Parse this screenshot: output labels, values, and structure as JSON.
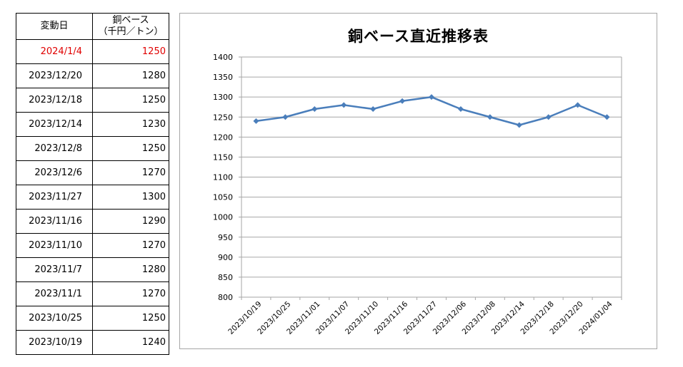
{
  "table": {
    "headers": [
      "変動日",
      "銅ベース\n（千円／トン）"
    ],
    "rows": [
      {
        "date": "2024/1/4",
        "value": "1250",
        "highlight": true
      },
      {
        "date": "2023/12/20",
        "value": "1280"
      },
      {
        "date": "2023/12/18",
        "value": "1250"
      },
      {
        "date": "2023/12/14",
        "value": "1230"
      },
      {
        "date": "2023/12/8",
        "value": "1250"
      },
      {
        "date": "2023/12/6",
        "value": "1270"
      },
      {
        "date": "2023/11/27",
        "value": "1300"
      },
      {
        "date": "2023/11/16",
        "value": "1290"
      },
      {
        "date": "2023/11/10",
        "value": "1270"
      },
      {
        "date": "2023/11/7",
        "value": "1280"
      },
      {
        "date": "2023/11/1",
        "value": "1270"
      },
      {
        "date": "2023/10/25",
        "value": "1250"
      },
      {
        "date": "2023/10/19",
        "value": "1240"
      }
    ]
  },
  "colors": {
    "highlight_text": "#e00000",
    "series_line": "#4a7ebb",
    "grid": "#a6a6a6"
  },
  "chart_data": {
    "type": "line",
    "title": "銅ベース直近推移表",
    "xlabel": "",
    "ylabel": "",
    "ylim": [
      800,
      1400
    ],
    "ytick_step": 50,
    "y_ticks": [
      "800",
      "850",
      "900",
      "950",
      "1000",
      "1050",
      "1100",
      "1150",
      "1200",
      "1250",
      "1300",
      "1350",
      "1400"
    ],
    "grid": true,
    "legend": "none",
    "categories": [
      "2023/10/19",
      "2023/10/25",
      "2023/11/01",
      "2023/11/07",
      "2023/11/10",
      "2023/11/16",
      "2023/11/27",
      "2023/12/06",
      "2023/12/08",
      "2023/12/14",
      "2023/12/18",
      "2023/12/20",
      "2024/01/04"
    ],
    "series": [
      {
        "values": [
          1240,
          1250,
          1270,
          1280,
          1270,
          1290,
          1300,
          1270,
          1250,
          1230,
          1250,
          1280,
          1250
        ]
      }
    ]
  }
}
